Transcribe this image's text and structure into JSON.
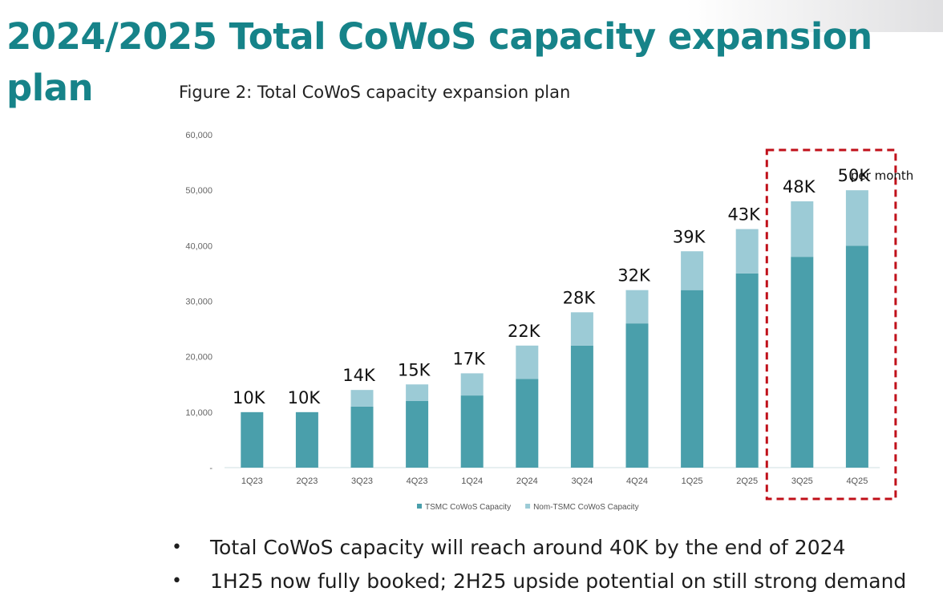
{
  "slide": {
    "title": "2024/2025 Total CoWoS capacity expansion plan",
    "bullets": [
      "Total CoWoS capacity will reach around 40K by the end of 2024",
      "1H25 now fully booked; 2H25 upside potential on still strong demand"
    ]
  },
  "chart_data": {
    "type": "bar",
    "stacked": true,
    "title": "Figure 2: Total CoWoS capacity expansion plan",
    "categories": [
      "1Q23",
      "2Q23",
      "3Q23",
      "4Q23",
      "1Q24",
      "2Q24",
      "3Q24",
      "4Q24",
      "1Q25",
      "2Q25",
      "3Q25",
      "4Q25"
    ],
    "series": [
      {
        "name": "TSMC CoWoS Capacity",
        "color": "#4a9fab",
        "values": [
          10000,
          10000,
          11000,
          12000,
          13000,
          16000,
          22000,
          26000,
          32000,
          35000,
          38000,
          40000
        ]
      },
      {
        "name": "Nom-TSMC CoWoS Capacity",
        "color": "#9ccbd6",
        "values": [
          0,
          0,
          3000,
          3000,
          4000,
          6000,
          6000,
          6000,
          7000,
          8000,
          10000,
          10000
        ]
      }
    ],
    "data_labels": [
      "10K",
      "10K",
      "14K",
      "15K",
      "17K",
      "22K",
      "28K",
      "32K",
      "39K",
      "43K",
      "48K",
      "50K"
    ],
    "ylim": [
      0,
      60000
    ],
    "yticks": [
      "-",
      "10,000",
      "20,000",
      "30,000",
      "40,000",
      "50,000",
      "60,000"
    ],
    "grid": false,
    "legend_position": "bottom",
    "annotation": {
      "text": "per month",
      "highlight_categories": [
        "3Q25",
        "4Q25"
      ],
      "highlight_color": "#c0101a"
    }
  }
}
